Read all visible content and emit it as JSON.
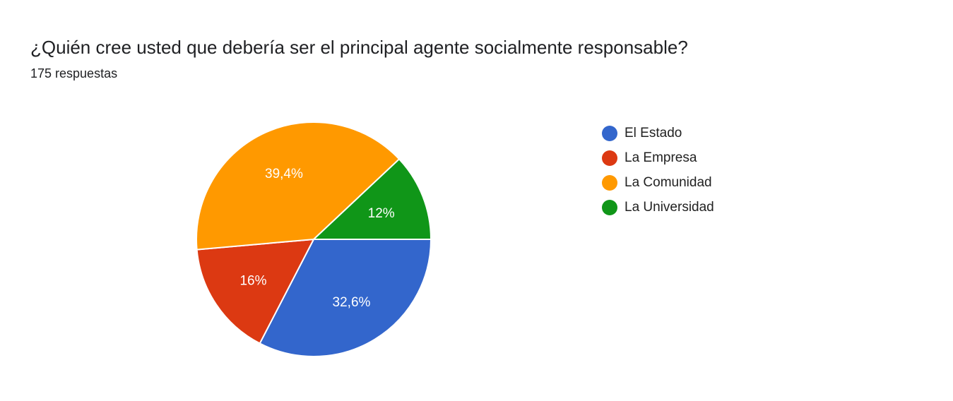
{
  "header": {
    "title": "¿Quién cree usted que debería ser el principal agente socialmente responsable?",
    "response_count": "175 respuestas"
  },
  "chart_data": {
    "type": "pie",
    "legend_position": "right",
    "start_angle_deg": 90,
    "direction": "clockwise",
    "slices": [
      {
        "name": "El Estado",
        "percent": 32.6,
        "label": "32,6%",
        "color": "#3366cc"
      },
      {
        "name": "La Empresa",
        "percent": 16.0,
        "label": "16%",
        "color": "#dc3912"
      },
      {
        "name": "La Comunidad",
        "percent": 39.4,
        "label": "39,4%",
        "color": "#ff9900"
      },
      {
        "name": "La Universidad",
        "percent": 12.0,
        "label": "12%",
        "color": "#109618"
      }
    ]
  }
}
